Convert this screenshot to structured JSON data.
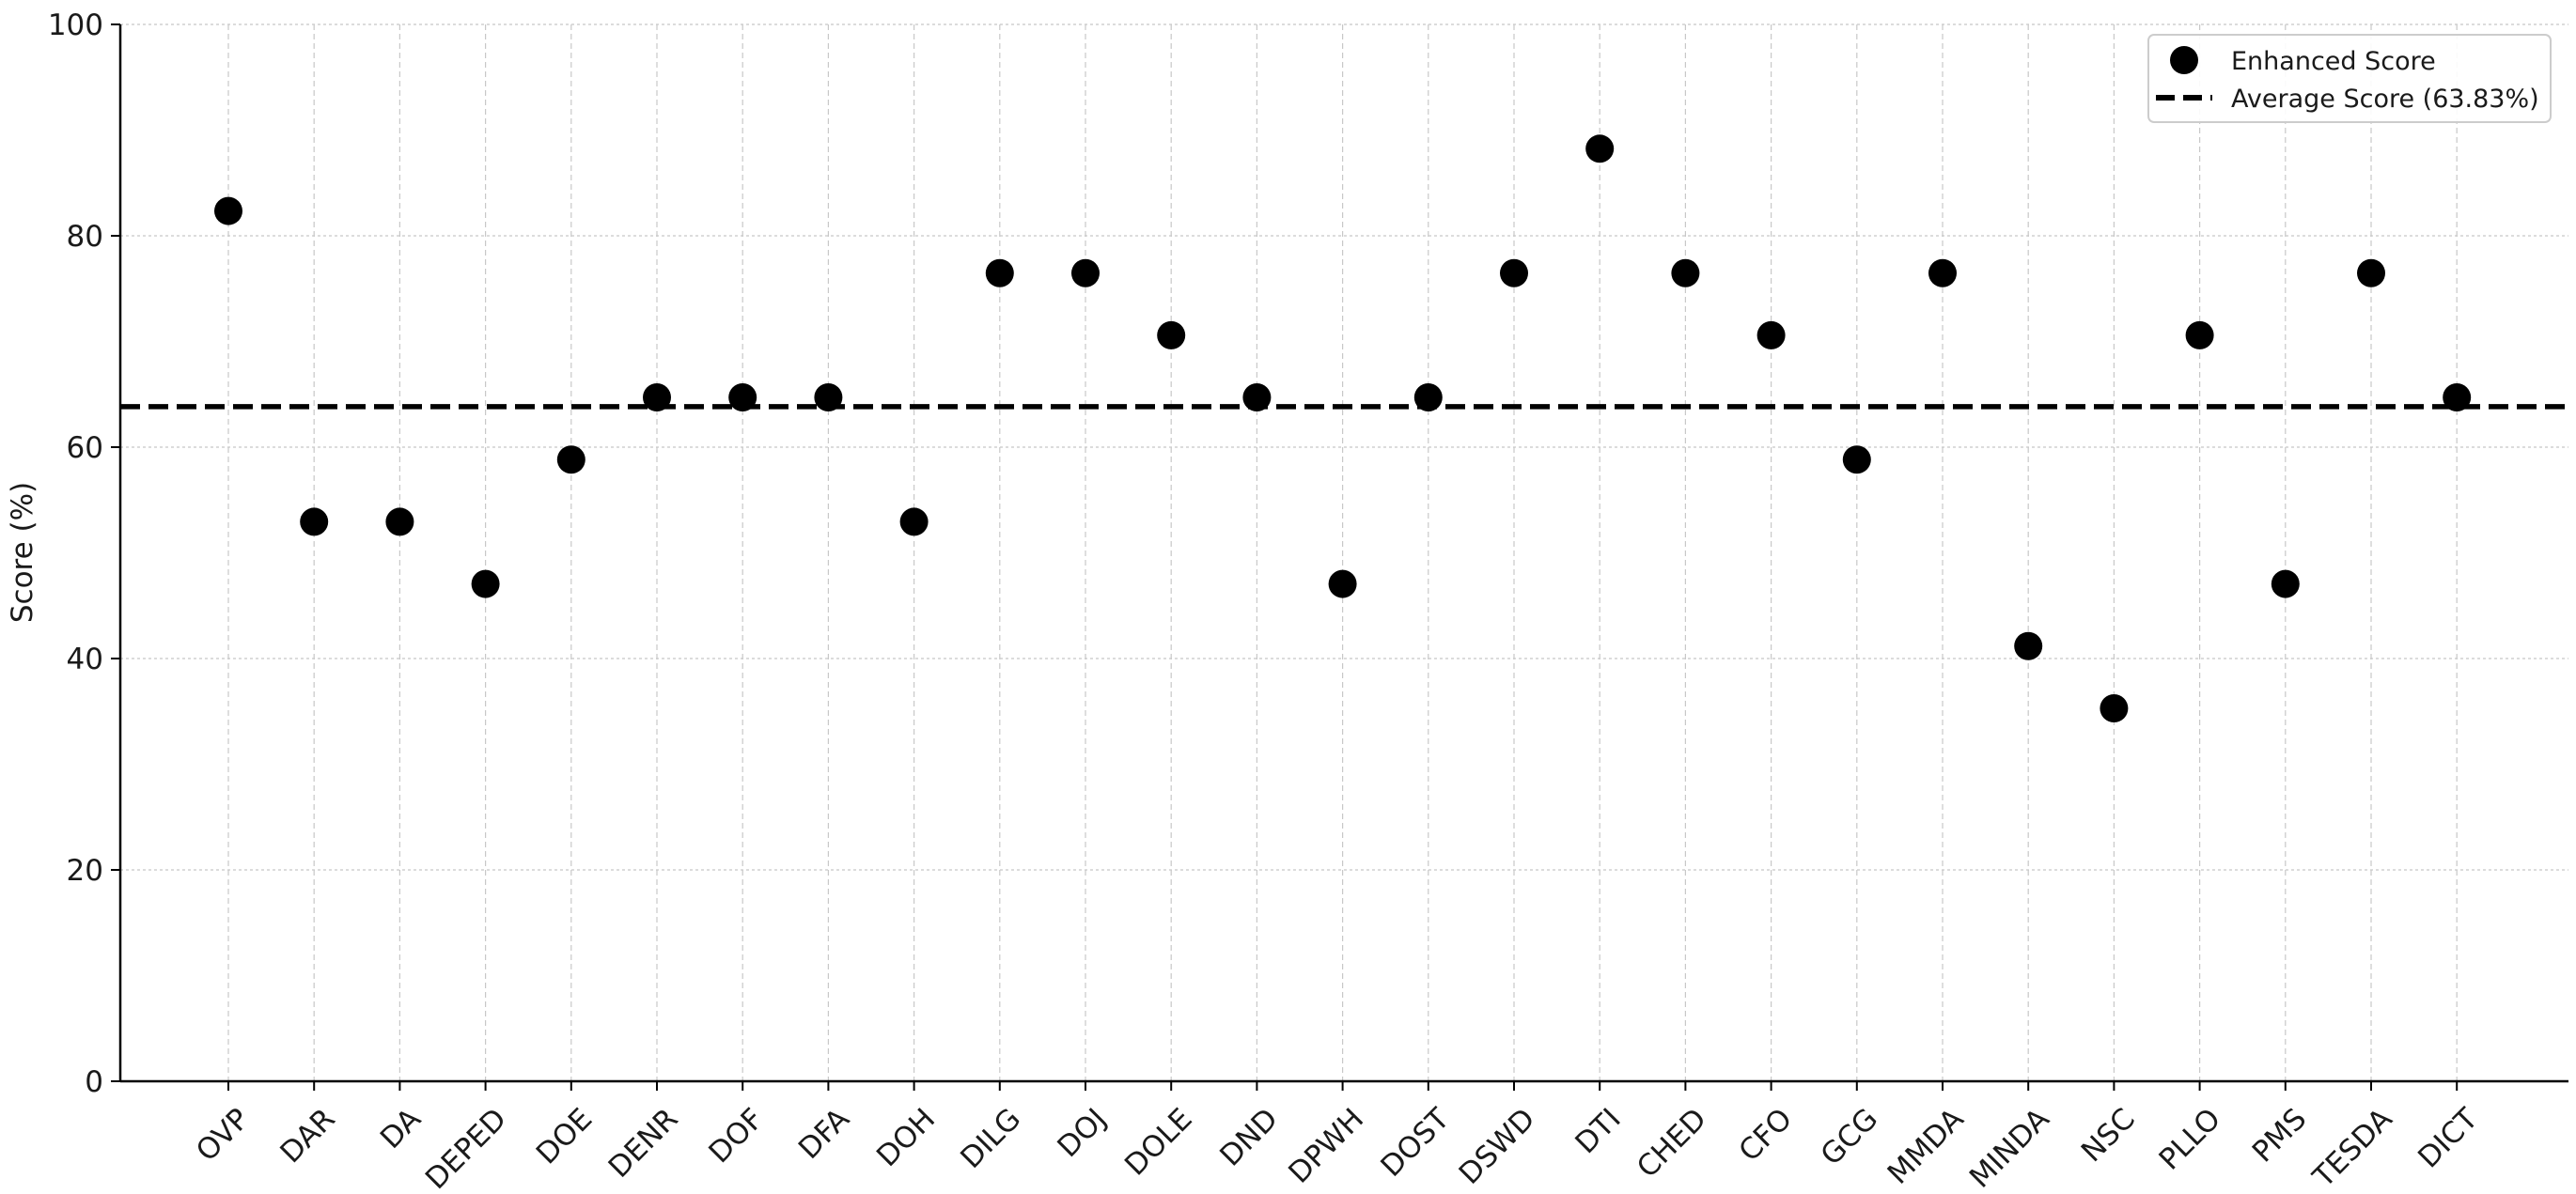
{
  "chart_data": {
    "type": "scatter",
    "title": "",
    "xlabel": "",
    "ylabel": "Score (%)",
    "ylim": [
      0,
      100
    ],
    "yticks": [
      0,
      20,
      40,
      60,
      80,
      100
    ],
    "grid": true,
    "legend_position": "top-right",
    "categories": [
      "OVP",
      "DAR",
      "DA",
      "DEPED",
      "DOE",
      "DENR",
      "DOF",
      "DFA",
      "DOH",
      "DILG",
      "DOJ",
      "DOLE",
      "DND",
      "DPWH",
      "DOST",
      "DSWD",
      "DTI",
      "CHED",
      "CFO",
      "GCG",
      "MMDA",
      "MINDA",
      "NSC",
      "PLLO",
      "PMS",
      "TESDA",
      "DICT"
    ],
    "series": [
      {
        "name": "Enhanced Score",
        "kind": "scatter",
        "color": "#000000",
        "values": [
          82.35,
          52.94,
          52.94,
          47.06,
          58.82,
          64.71,
          64.71,
          64.71,
          52.94,
          76.47,
          76.47,
          70.59,
          64.71,
          47.06,
          64.71,
          76.47,
          88.24,
          76.47,
          70.59,
          58.82,
          76.47,
          41.18,
          35.29,
          70.59,
          47.06,
          76.47,
          64.71
        ]
      },
      {
        "name": "Average Score (63.83%)",
        "kind": "hline",
        "color": "#000000",
        "value": 63.83
      }
    ]
  }
}
